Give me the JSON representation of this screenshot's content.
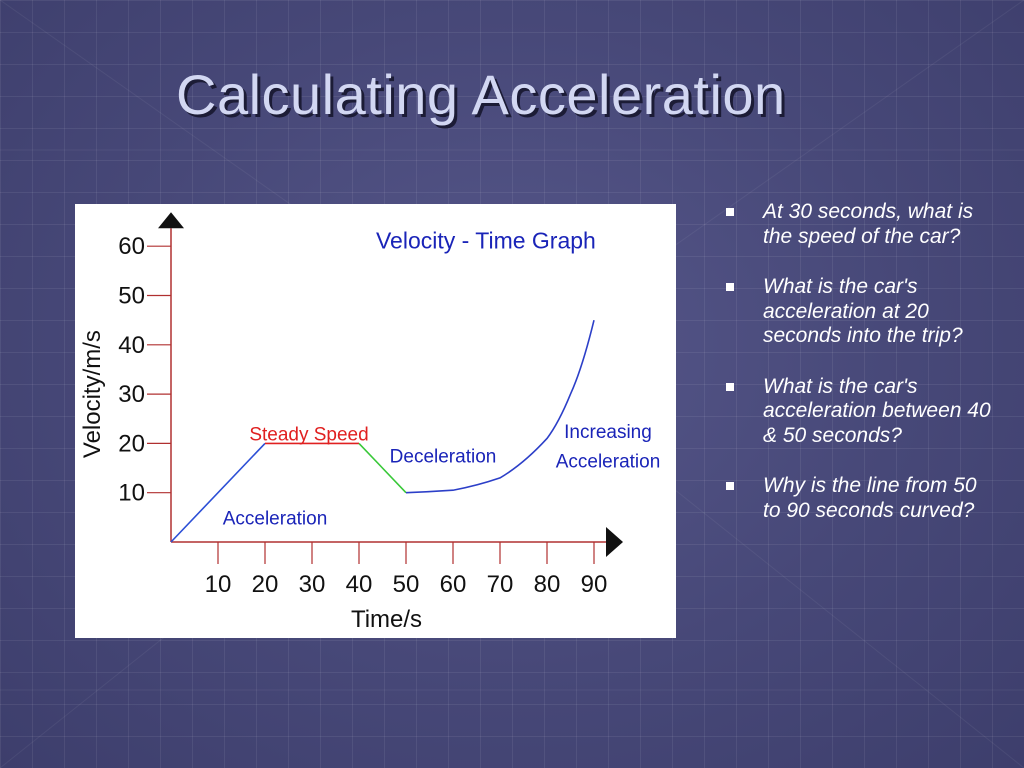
{
  "slide": {
    "title": "Calculating Acceleration",
    "questions": [
      "At 30 seconds, what is the speed of the car?",
      "What is the car's acceleration at 20 seconds into the trip?",
      "What is the car's acceleration between 40 & 50 seconds?",
      "Why is the line from 50 to 90 seconds curved?"
    ]
  },
  "chart_data": {
    "type": "line",
    "title": "Velocity - Time Graph",
    "xlabel": "Time/s",
    "ylabel": "Velocity/m/s",
    "x_ticks": [
      "10",
      "20",
      "30",
      "40",
      "50",
      "60",
      "70",
      "80",
      "90"
    ],
    "y_ticks": [
      "10",
      "20",
      "30",
      "40",
      "50",
      "60"
    ],
    "xlim": [
      0,
      90
    ],
    "ylim": [
      0,
      60
    ],
    "series": [
      {
        "x": [
          0,
          20,
          40,
          50,
          60,
          70,
          80,
          85,
          90
        ],
        "y": [
          0,
          20,
          20,
          10,
          10.5,
          13,
          21,
          30,
          45
        ]
      }
    ],
    "annotations": [
      {
        "text": "Acceleration",
        "color": "#1a24b8"
      },
      {
        "text": "Steady Speed",
        "color": "#e02020"
      },
      {
        "text": "Deceleration",
        "color": "#1a24b8"
      },
      {
        "text": "Increasing",
        "color": "#1a24b8"
      },
      {
        "text": "Acceleration",
        "color": "#1a24b8"
      }
    ],
    "colors": {
      "axis": "#b03030",
      "title": "#1a24b8",
      "ramp_up": "#2c4fd6",
      "steady": "#e02020",
      "decel": "#38c838",
      "curve": "#2c3fc8",
      "text": "#111111"
    }
  }
}
